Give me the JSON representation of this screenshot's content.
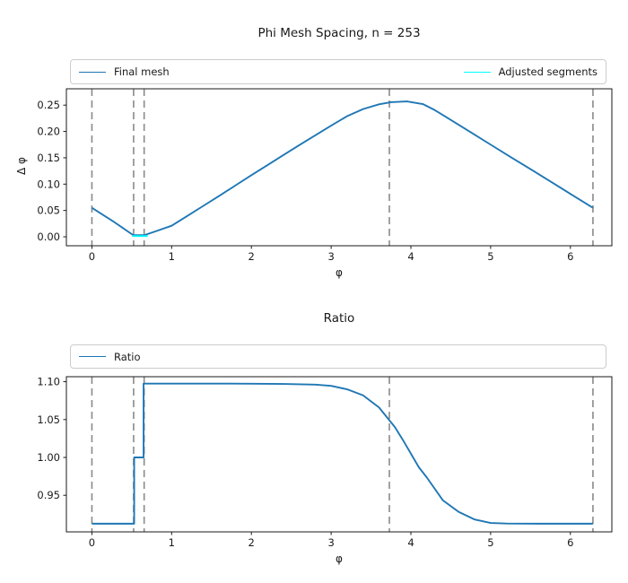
{
  "figure": {
    "background": "#ffffff",
    "spine_color": "#1a1a1a",
    "text_color": "#1a1a1a"
  },
  "chart_data": [
    {
      "type": "line",
      "title": "Phi Mesh Spacing, n = 253",
      "xlabel": "φ",
      "ylabel": "Δ φ",
      "xlim": [
        -0.32,
        6.52
      ],
      "ylim": [
        -0.017,
        0.281
      ],
      "xtick_values": [
        0,
        1,
        2,
        3,
        4,
        5,
        6
      ],
      "xtick_labels": [
        "0",
        "1",
        "2",
        "3",
        "4",
        "5",
        "6"
      ],
      "ytick_values": [
        0.0,
        0.05,
        0.1,
        0.15,
        0.2,
        0.25
      ],
      "ytick_labels": [
        "0.00",
        "0.05",
        "0.10",
        "0.15",
        "0.20",
        "0.25"
      ],
      "grid": false,
      "legend": {
        "loc": "top-expanded",
        "ncol": 2
      },
      "vlines": {
        "x": [
          0,
          0.523,
          0.655,
          3.73,
          6.283
        ],
        "style": "dashed",
        "color": "#8a8a8a"
      },
      "series": [
        {
          "name": "Final mesh",
          "color": "#1f77b4",
          "x": [
            0,
            0.13,
            0.26,
            0.39,
            0.52,
            0.655,
            0.8,
            1.0,
            1.2,
            1.4,
            1.6,
            1.8,
            2.0,
            2.2,
            2.4,
            2.6,
            2.8,
            3.0,
            3.2,
            3.4,
            3.6,
            3.75,
            3.95,
            4.15,
            4.3,
            4.5,
            4.75,
            5.0,
            5.25,
            5.5,
            5.75,
            6.0,
            6.283
          ],
          "y": [
            0.055,
            0.0425,
            0.03,
            0.0165,
            0.003,
            0.003,
            0.0105,
            0.021,
            0.04,
            0.059,
            0.078,
            0.0975,
            0.117,
            0.136,
            0.155,
            0.174,
            0.1925,
            0.211,
            0.229,
            0.2425,
            0.2515,
            0.2555,
            0.257,
            0.252,
            0.2405,
            0.222,
            0.1985,
            0.175,
            0.1515,
            0.1285,
            0.105,
            0.0815,
            0.055
          ]
        },
        {
          "name": "Adjusted segments",
          "color": "#00ffff",
          "x": [
            0.505,
            0.7
          ],
          "y": [
            0.0015,
            0.0015
          ]
        }
      ]
    },
    {
      "type": "line",
      "title": "Ratio",
      "xlabel": "φ",
      "ylabel": "",
      "xlim": [
        -0.32,
        6.52
      ],
      "ylim": [
        0.9017,
        1.1066
      ],
      "xtick_values": [
        0,
        1,
        2,
        3,
        4,
        5,
        6
      ],
      "xtick_labels": [
        "0",
        "1",
        "2",
        "3",
        "4",
        "5",
        "6"
      ],
      "ytick_values": [
        0.95,
        1.0,
        1.05,
        1.1
      ],
      "ytick_labels": [
        "0.95",
        "1.00",
        "1.05",
        "1.10"
      ],
      "grid": false,
      "legend": {
        "loc": "top-expanded",
        "ncol": 1
      },
      "vlines": {
        "x": [
          0,
          0.523,
          0.655,
          3.73,
          6.283
        ],
        "style": "dashed",
        "color": "#8a8a8a"
      },
      "series": [
        {
          "name": "Ratio",
          "color": "#1f77b4",
          "x": [
            0,
            0.53,
            0.53,
            0.648,
            0.648,
            0.8,
            1.2,
            1.6,
            2.0,
            2.4,
            2.8,
            3.0,
            3.2,
            3.4,
            3.6,
            3.8,
            3.9,
            4.0,
            4.1,
            4.2,
            4.4,
            4.6,
            4.8,
            5.0,
            5.2,
            5.6,
            6.0,
            6.283
          ],
          "y": [
            0.9125,
            0.9125,
            1.0,
            1.0,
            1.0975,
            1.0975,
            1.0975,
            1.0975,
            1.0974,
            1.097,
            1.0962,
            1.0945,
            1.09,
            1.082,
            1.066,
            1.04,
            1.023,
            1.005,
            0.987,
            0.9735,
            0.9435,
            0.928,
            0.918,
            0.9135,
            0.9127,
            0.9125,
            0.9125,
            0.9125
          ]
        }
      ]
    }
  ]
}
